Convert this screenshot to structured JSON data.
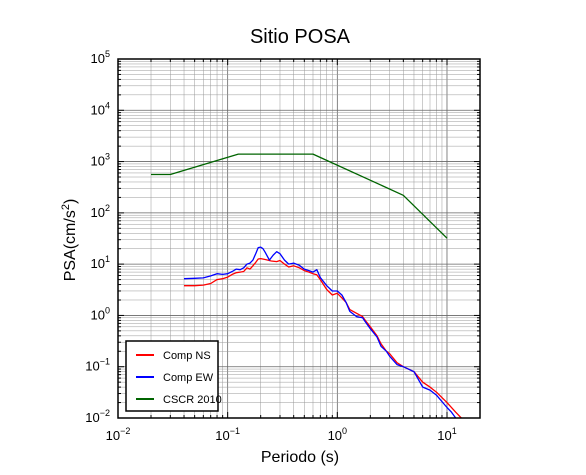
{
  "chart_data": {
    "type": "line",
    "title": "Sitio POSA",
    "xlabel": "Periodo (s)",
    "ylabel_main": "PSA(cm/s",
    "ylabel_sup": "2",
    "ylabel_close": ")",
    "x_scale": "log",
    "y_scale": "log",
    "xlim": [
      0.01,
      20
    ],
    "ylim": [
      0.01,
      100000
    ],
    "x_ticks": [
      {
        "base": "10",
        "exp": "−2",
        "value": 0.01
      },
      {
        "base": "10",
        "exp": "−1",
        "value": 0.1
      },
      {
        "base": "10",
        "exp": "0",
        "value": 1
      },
      {
        "base": "10",
        "exp": "1",
        "value": 10
      }
    ],
    "y_ticks": [
      {
        "base": "10",
        "exp": "−2",
        "value": 0.01
      },
      {
        "base": "10",
        "exp": "−1",
        "value": 0.1
      },
      {
        "base": "10",
        "exp": "0",
        "value": 1
      },
      {
        "base": "10",
        "exp": "1",
        "value": 10
      },
      {
        "base": "10",
        "exp": "2",
        "value": 100
      },
      {
        "base": "10",
        "exp": "3",
        "value": 1000
      },
      {
        "base": "10",
        "exp": "4",
        "value": 10000
      },
      {
        "base": "10",
        "exp": "5",
        "value": 100000
      }
    ],
    "grid": true,
    "legend_position": "bottom-left",
    "series": [
      {
        "name": "Comp NS",
        "color": "#ff0000",
        "points": [
          [
            0.04,
            3.8
          ],
          [
            0.05,
            3.8
          ],
          [
            0.06,
            3.9
          ],
          [
            0.07,
            4.2
          ],
          [
            0.08,
            5.0
          ],
          [
            0.09,
            5.2
          ],
          [
            0.1,
            5.6
          ],
          [
            0.11,
            6.3
          ],
          [
            0.12,
            6.8
          ],
          [
            0.13,
            7.0
          ],
          [
            0.14,
            7.2
          ],
          [
            0.15,
            8.5
          ],
          [
            0.16,
            8.0
          ],
          [
            0.17,
            9.3
          ],
          [
            0.18,
            10.8
          ],
          [
            0.19,
            12.6
          ],
          [
            0.2,
            12.8
          ],
          [
            0.22,
            12.3
          ],
          [
            0.25,
            11.5
          ],
          [
            0.28,
            11.2
          ],
          [
            0.3,
            11.8
          ],
          [
            0.33,
            10.0
          ],
          [
            0.36,
            8.8
          ],
          [
            0.4,
            9.3
          ],
          [
            0.45,
            8.5
          ],
          [
            0.5,
            7.5
          ],
          [
            0.55,
            7.0
          ],
          [
            0.6,
            6.5
          ],
          [
            0.65,
            6.2
          ],
          [
            0.7,
            5.0
          ],
          [
            0.8,
            3.2
          ],
          [
            0.9,
            2.5
          ],
          [
            1.0,
            2.7
          ],
          [
            1.1,
            2.2
          ],
          [
            1.2,
            1.8
          ],
          [
            1.3,
            1.3
          ],
          [
            1.5,
            1.1
          ],
          [
            1.7,
            0.95
          ],
          [
            1.8,
            0.8
          ],
          [
            2.0,
            0.6
          ],
          [
            2.3,
            0.4
          ],
          [
            2.5,
            0.28
          ],
          [
            2.8,
            0.2
          ],
          [
            3.0,
            0.18
          ],
          [
            3.5,
            0.12
          ],
          [
            4.0,
            0.1
          ],
          [
            5.0,
            0.08
          ],
          [
            6.0,
            0.05
          ],
          [
            7.0,
            0.04
          ],
          [
            8.0,
            0.032
          ],
          [
            10.0,
            0.02
          ],
          [
            12.0,
            0.013
          ],
          [
            13.5,
            0.01
          ]
        ]
      },
      {
        "name": "Comp EW",
        "color": "#0000ff",
        "points": [
          [
            0.04,
            5.2
          ],
          [
            0.05,
            5.3
          ],
          [
            0.06,
            5.4
          ],
          [
            0.07,
            5.9
          ],
          [
            0.08,
            6.5
          ],
          [
            0.09,
            6.3
          ],
          [
            0.1,
            6.5
          ],
          [
            0.11,
            7.2
          ],
          [
            0.12,
            8.0
          ],
          [
            0.13,
            7.8
          ],
          [
            0.14,
            8.5
          ],
          [
            0.15,
            10.0
          ],
          [
            0.16,
            10.5
          ],
          [
            0.17,
            12.0
          ],
          [
            0.18,
            16.0
          ],
          [
            0.19,
            21.0
          ],
          [
            0.2,
            21.5
          ],
          [
            0.21,
            20.0
          ],
          [
            0.22,
            17.0
          ],
          [
            0.24,
            12.0
          ],
          [
            0.26,
            15.0
          ],
          [
            0.28,
            17.5
          ],
          [
            0.3,
            16.0
          ],
          [
            0.33,
            12.0
          ],
          [
            0.36,
            10.0
          ],
          [
            0.4,
            10.5
          ],
          [
            0.45,
            9.5
          ],
          [
            0.5,
            8.0
          ],
          [
            0.55,
            7.5
          ],
          [
            0.6,
            7.0
          ],
          [
            0.65,
            7.8
          ],
          [
            0.7,
            5.5
          ],
          [
            0.8,
            3.8
          ],
          [
            0.9,
            3.0
          ],
          [
            1.0,
            3.0
          ],
          [
            1.1,
            2.5
          ],
          [
            1.2,
            1.8
          ],
          [
            1.3,
            1.2
          ],
          [
            1.5,
            0.95
          ],
          [
            1.7,
            0.9
          ],
          [
            1.8,
            0.75
          ],
          [
            2.0,
            0.55
          ],
          [
            2.3,
            0.38
          ],
          [
            2.5,
            0.25
          ],
          [
            2.8,
            0.2
          ],
          [
            3.0,
            0.16
          ],
          [
            3.5,
            0.11
          ],
          [
            4.0,
            0.1
          ],
          [
            5.0,
            0.08
          ],
          [
            6.0,
            0.04
          ],
          [
            7.0,
            0.035
          ],
          [
            8.0,
            0.028
          ],
          [
            10.0,
            0.016
          ],
          [
            11.0,
            0.013
          ],
          [
            12.0,
            0.01
          ]
        ]
      },
      {
        "name": "CSCR 2010",
        "color": "#006400",
        "points": [
          [
            0.02,
            560
          ],
          [
            0.03,
            560
          ],
          [
            0.125,
            1400
          ],
          [
            0.6,
            1400
          ],
          [
            4.0,
            220
          ],
          [
            10.0,
            32
          ]
        ]
      }
    ]
  }
}
